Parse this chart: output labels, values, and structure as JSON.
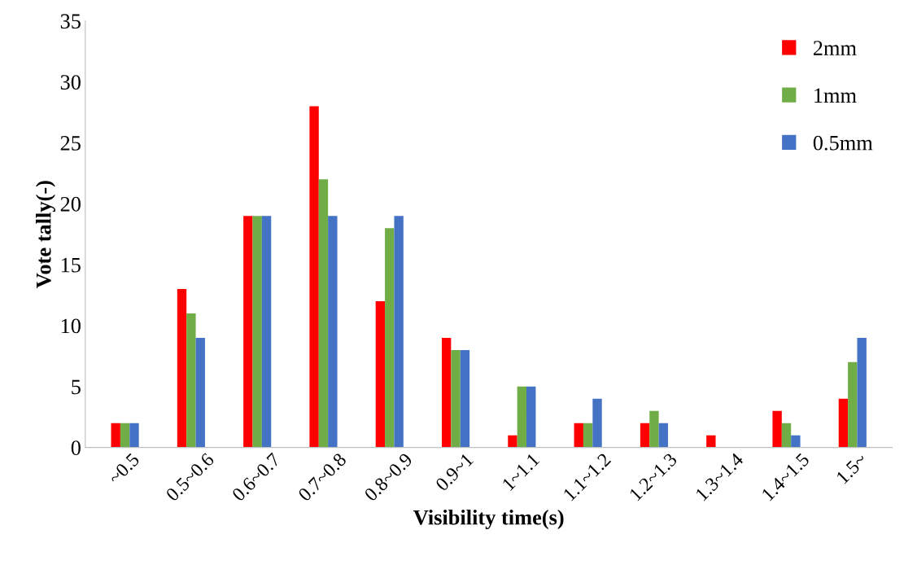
{
  "chart_data": {
    "type": "bar",
    "xlabel": "Visibility time(s)",
    "ylabel": "Vote tally(-)",
    "categories": [
      "~0.5",
      "0.5~0.6",
      "0.6~0.7",
      "0.7~0.8",
      "0.8~0.9",
      "0.9~1",
      "1~1.1",
      "1.1~1.2",
      "1.2~1.3",
      "1.3~1.4",
      "1.4~1.5",
      "1.5~"
    ],
    "series": [
      {
        "name": "2mm",
        "color": "#ff0000",
        "values": [
          2,
          13,
          19,
          28,
          12,
          9,
          1,
          2,
          2,
          1,
          3,
          4
        ]
      },
      {
        "name": "1mm",
        "color": "#70ad47",
        "values": [
          2,
          11,
          19,
          22,
          18,
          8,
          5,
          2,
          3,
          0,
          2,
          7
        ]
      },
      {
        "name": "0.5mm",
        "color": "#4472c4",
        "values": [
          2,
          9,
          19,
          19,
          19,
          8,
          5,
          4,
          2,
          0,
          1,
          9
        ]
      }
    ],
    "ylim": [
      0,
      35
    ],
    "yticks": [
      0,
      5,
      10,
      15,
      20,
      25,
      30,
      35
    ],
    "grid": false,
    "legend": "top right"
  }
}
